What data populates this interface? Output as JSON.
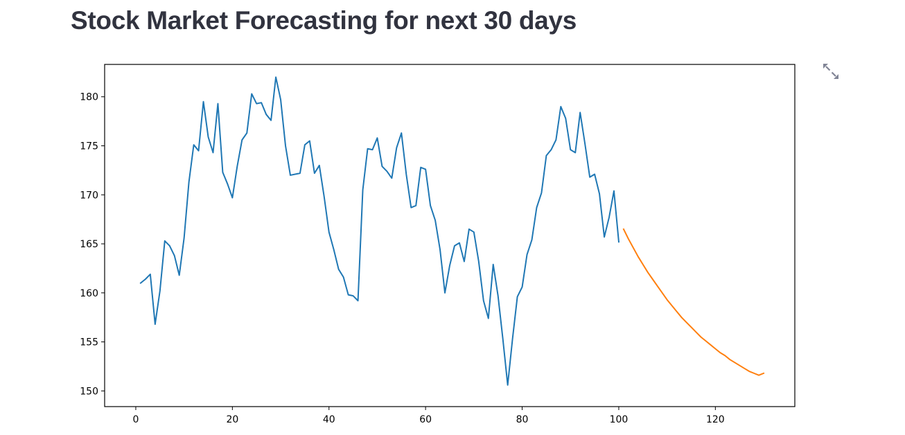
{
  "page": {
    "title": "Stock Market Forecasting for next 30 days"
  },
  "toolbar": {
    "fullscreen_icon": "expand-arrows-icon"
  },
  "colors": {
    "history": "#1f77b4",
    "forecast": "#ff7f0e",
    "title": "#31333f",
    "icon": "#808495"
  },
  "chart_data": {
    "type": "line",
    "title": "",
    "xlabel": "",
    "ylabel": "",
    "xlim": [
      -6.45,
      136.45
    ],
    "ylim": [
      148.4,
      183.3
    ],
    "xticks": [
      0,
      20,
      40,
      60,
      80,
      100,
      120
    ],
    "yticks": [
      150,
      155,
      160,
      165,
      170,
      175,
      180
    ],
    "grid": false,
    "series": [
      {
        "color": "#1f77b4",
        "x_start": 1,
        "values": [
          161.0,
          161.4,
          161.9,
          156.8,
          160.2,
          165.3,
          164.8,
          163.8,
          161.8,
          165.6,
          171.3,
          175.1,
          174.5,
          179.5,
          175.9,
          174.3,
          179.3,
          172.3,
          171.1,
          169.7,
          172.9,
          175.6,
          176.3,
          180.3,
          179.3,
          179.4,
          178.2,
          177.6,
          182.0,
          179.7,
          175.0,
          172.0,
          172.1,
          172.2,
          175.1,
          175.5,
          172.2,
          173.0,
          169.8,
          166.2,
          164.4,
          162.4,
          161.6,
          159.8,
          159.7,
          159.2,
          170.5,
          174.7,
          174.6,
          175.8,
          172.9,
          172.4,
          171.7,
          174.8,
          176.3,
          172.1,
          168.7,
          168.9,
          172.8,
          172.6,
          168.9,
          167.4,
          164.4,
          160.0,
          162.8,
          164.8,
          165.1,
          163.2,
          166.5,
          166.2,
          163.2,
          159.2,
          157.4,
          162.9,
          159.7,
          155.3,
          150.6,
          155.3,
          159.6,
          160.6,
          163.9,
          165.4,
          168.7,
          170.2,
          174.0,
          174.6,
          175.6,
          179.0,
          177.8,
          174.6,
          174.3,
          178.4,
          175.2,
          171.8,
          172.1,
          170.1,
          165.7,
          167.7,
          170.4,
          165.2
        ]
      },
      {
        "color": "#ff7f0e",
        "x_start": 101,
        "values": [
          166.5,
          165.5,
          164.6,
          163.7,
          162.9,
          162.1,
          161.4,
          160.7,
          160.0,
          159.3,
          158.7,
          158.1,
          157.5,
          157.0,
          156.5,
          156.0,
          155.5,
          155.1,
          154.7,
          154.3,
          153.9,
          153.6,
          153.2,
          152.9,
          152.6,
          152.3,
          152.0,
          151.8,
          151.6,
          151.8
        ]
      }
    ]
  }
}
